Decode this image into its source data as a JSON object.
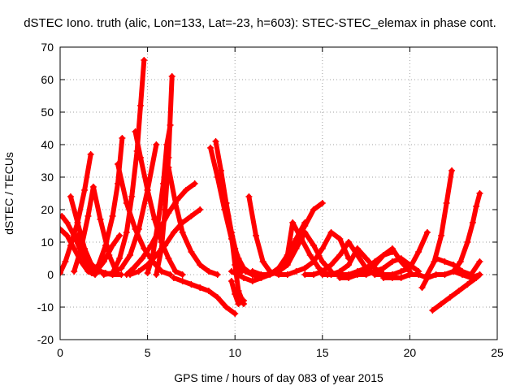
{
  "chart_data": {
    "type": "scatter",
    "title": "dSTEC Iono. truth (alic, Lon=133, Lat=-23, h=603): STEC-STEC_elemax in phase cont.",
    "xlabel": "GPS time / hours of day 083 of year 2015",
    "ylabel": "dSTEC  / TECUs",
    "xlim": [
      0,
      25
    ],
    "ylim": [
      -20,
      70
    ],
    "xticks": [
      0,
      5,
      10,
      15,
      20,
      25
    ],
    "yticks": [
      -20,
      -10,
      0,
      10,
      20,
      30,
      40,
      50,
      60,
      70
    ],
    "xtick_labels": [
      "0",
      "5",
      "10",
      "15",
      "20",
      "25"
    ],
    "ytick_labels": [
      "-20",
      "-10",
      "0",
      "10",
      "20",
      "30",
      "40",
      "50",
      "60",
      "70"
    ],
    "grid": true,
    "marker": "plus",
    "color": "#ff0000",
    "series": [
      {
        "x": [
          0.0,
          0.3,
          0.6,
          1.0,
          1.4,
          1.75
        ],
        "y": [
          0.5,
          4,
          9,
          16,
          26,
          37
        ]
      },
      {
        "x": [
          0.0,
          0.4,
          0.8,
          1.2,
          1.6,
          2.0
        ],
        "y": [
          14,
          12,
          8,
          4,
          1,
          0
        ]
      },
      {
        "x": [
          0.1,
          0.4,
          0.8,
          1.2,
          1.6,
          2.0
        ],
        "y": [
          18,
          16,
          12,
          7,
          3,
          0.5
        ]
      },
      {
        "x": [
          0.6,
          1.0,
          1.4,
          1.8,
          2.2,
          2.6,
          3.0
        ],
        "y": [
          24,
          16,
          8,
          3,
          1,
          0.5,
          0
        ]
      },
      {
        "x": [
          0.8,
          1.2,
          1.6,
          1.9,
          2.3,
          2.8,
          3.2
        ],
        "y": [
          1,
          8,
          18,
          27,
          17,
          6,
          1
        ]
      },
      {
        "x": [
          1.0,
          1.5,
          2.0,
          2.5,
          3.0,
          3.5
        ],
        "y": [
          12,
          5,
          2,
          0.5,
          0,
          0
        ]
      },
      {
        "x": [
          1.8,
          2.2,
          2.6,
          3.0,
          3.3,
          3.55
        ],
        "y": [
          0.5,
          3,
          9,
          18,
          28,
          42
        ]
      },
      {
        "x": [
          2.0,
          2.5,
          3.0,
          3.4
        ],
        "y": [
          0.5,
          4,
          9,
          12
        ]
      },
      {
        "x": [
          3.3,
          3.8,
          4.3,
          4.8,
          5.3,
          5.8,
          6.3
        ],
        "y": [
          34,
          22,
          14,
          8,
          4,
          1,
          0
        ]
      },
      {
        "x": [
          2.5,
          3.0,
          3.5,
          4.0,
          4.5,
          5.0,
          5.5
        ],
        "y": [
          0,
          0.5,
          2,
          6,
          14,
          26,
          40
        ]
      },
      {
        "x": [
          3.0,
          3.4,
          3.8,
          4.1,
          4.4,
          4.6,
          4.8
        ],
        "y": [
          0.5,
          5,
          13,
          24,
          38,
          52,
          66
        ]
      },
      {
        "x": [
          4.3,
          4.6,
          5.0,
          5.4,
          5.8,
          6.2,
          6.6,
          7.0
        ],
        "y": [
          44,
          36,
          26,
          17,
          10,
          5,
          1,
          0
        ]
      },
      {
        "x": [
          5.0,
          5.3,
          5.6,
          5.9,
          6.1,
          6.3
        ],
        "y": [
          0.5,
          6,
          16,
          28,
          40,
          46
        ]
      },
      {
        "x": [
          3.8,
          4.2,
          4.7,
          5.2,
          5.7,
          6.2,
          6.7,
          7.2,
          7.7
        ],
        "y": [
          0,
          2,
          5,
          9,
          14,
          19,
          23,
          26,
          28
        ]
      },
      {
        "x": [
          4.0,
          4.5,
          5.0,
          5.5,
          6.0,
          6.5,
          7.0,
          7.5,
          8.0
        ],
        "y": [
          0,
          1,
          3,
          6,
          9,
          13,
          16,
          18,
          20
        ]
      },
      {
        "x": [
          5.5,
          5.8,
          6.0,
          6.2,
          6.4
        ],
        "y": [
          0,
          8,
          20,
          36,
          61
        ]
      },
      {
        "x": [
          6.2,
          6.6,
          7.0,
          7.5,
          8.0,
          8.5,
          9.0
        ],
        "y": [
          33,
          22,
          13,
          7,
          3,
          1,
          0
        ]
      },
      {
        "x": [
          6.5,
          7.0,
          7.5,
          8.0,
          8.5,
          9.0,
          9.5,
          10.0
        ],
        "y": [
          -1,
          -2,
          -3,
          -4,
          -5,
          -7,
          -10,
          -12
        ]
      },
      {
        "x": [
          8.6,
          9.0,
          9.4,
          9.8,
          10.2,
          10.6,
          11.0
        ],
        "y": [
          39,
          30,
          20,
          11,
          5,
          1,
          0
        ]
      },
      {
        "x": [
          8.9,
          9.2,
          9.5,
          9.8,
          10.1,
          10.4
        ],
        "y": [
          41,
          32,
          22,
          13,
          6,
          1
        ]
      },
      {
        "x": [
          9.2,
          9.6,
          10.0,
          10.3
        ],
        "y": [
          28,
          18,
          8,
          1
        ]
      },
      {
        "x": [
          9.5,
          9.8,
          10.0,
          10.2,
          10.5
        ],
        "y": [
          22,
          12,
          3,
          -5,
          -9
        ]
      },
      {
        "x": [
          9.8,
          10.0,
          10.2,
          10.5
        ],
        "y": [
          -2,
          -6,
          -9,
          -8
        ]
      },
      {
        "x": [
          10.8,
          11.2,
          11.6,
          12.0,
          12.5,
          13.0
        ],
        "y": [
          24,
          12,
          4,
          1,
          0,
          0
        ]
      },
      {
        "x": [
          9.8,
          10.5,
          11.0,
          11.5,
          12.0,
          12.5,
          13.0,
          13.5,
          14.0
        ],
        "y": [
          1,
          -1,
          -2,
          -1,
          0,
          2,
          6,
          11,
          16
        ]
      },
      {
        "x": [
          10.5,
          11.0,
          11.5,
          12.0,
          12.5,
          13.0,
          13.5,
          14.0,
          14.5,
          15.0
        ],
        "y": [
          2,
          0,
          -1,
          0,
          2,
          5,
          10,
          15,
          20,
          22
        ]
      },
      {
        "x": [
          11.0,
          11.5,
          12.0,
          12.5,
          13.0,
          13.3,
          13.8,
          14.3,
          14.8,
          15.3
        ],
        "y": [
          1,
          0,
          0,
          1,
          6,
          16,
          11,
          6,
          2,
          0
        ]
      },
      {
        "x": [
          12.0,
          12.5,
          13.0,
          13.5,
          14.0,
          14.5,
          15.0,
          15.5
        ],
        "y": [
          0,
          1,
          3,
          8,
          13,
          9,
          4,
          1
        ]
      },
      {
        "x": [
          13.0,
          13.5,
          14.0,
          14.5,
          15.0,
          15.5,
          16.0,
          16.5
        ],
        "y": [
          0,
          1,
          2,
          4,
          8,
          13,
          11,
          5
        ]
      },
      {
        "x": [
          14.0,
          14.5,
          15.0,
          15.5,
          16.0,
          16.5,
          17.0,
          17.5,
          18.0
        ],
        "y": [
          0,
          0,
          1,
          3,
          6,
          10,
          6,
          2,
          0
        ]
      },
      {
        "x": [
          15.0,
          15.5,
          16.0,
          16.5,
          17.0,
          17.5,
          18.0,
          18.5,
          19.0
        ],
        "y": [
          0,
          0,
          1,
          3,
          8,
          5,
          2,
          0,
          0
        ]
      },
      {
        "x": [
          15.5,
          16.0,
          16.5,
          17.0,
          17.5,
          18.0,
          18.5,
          19.0,
          19.5,
          20.0
        ],
        "y": [
          0,
          0,
          0,
          1,
          2,
          4,
          6,
          8,
          4,
          1
        ]
      },
      {
        "x": [
          16.0,
          16.5,
          17.0,
          17.5,
          18.0,
          18.5,
          19.0
        ],
        "y": [
          -1,
          -1,
          0,
          1,
          3,
          6,
          7
        ]
      },
      {
        "x": [
          17.0,
          17.5,
          18.0,
          18.5,
          19.0,
          19.5,
          20.0,
          20.5
        ],
        "y": [
          0,
          0,
          1,
          2,
          4,
          5,
          3,
          1
        ]
      },
      {
        "x": [
          18.0,
          18.5,
          19.0,
          19.5,
          20.0,
          20.5,
          21.0
        ],
        "y": [
          0,
          0,
          0,
          1,
          2,
          7,
          13
        ]
      },
      {
        "x": [
          18.5,
          19.0,
          19.5,
          20.0,
          20.5,
          21.0
        ],
        "y": [
          -1,
          -1,
          -1,
          0,
          0,
          -1
        ]
      },
      {
        "x": [
          20.7,
          21.0,
          21.5,
          22.0,
          22.5,
          23.0,
          23.5,
          24.0
        ],
        "y": [
          -4,
          -1,
          0,
          0,
          1,
          0,
          -1,
          0
        ]
      },
      {
        "x": [
          21.0,
          21.4,
          21.8,
          22.1,
          22.4
        ],
        "y": [
          0,
          4,
          12,
          22,
          32
        ]
      },
      {
        "x": [
          21.3,
          21.8,
          22.3,
          22.8,
          23.3,
          23.8,
          24.0
        ],
        "y": [
          -11,
          -9,
          -7,
          -5,
          -3,
          -1,
          0
        ]
      },
      {
        "x": [
          21.5,
          22.0,
          22.5,
          23.0,
          23.5,
          24.0
        ],
        "y": [
          5,
          4,
          3,
          1,
          0,
          4
        ]
      },
      {
        "x": [
          22.5,
          22.9,
          23.3,
          23.6,
          23.8,
          24.0
        ],
        "y": [
          1,
          4,
          10,
          16,
          21,
          25
        ]
      }
    ]
  }
}
